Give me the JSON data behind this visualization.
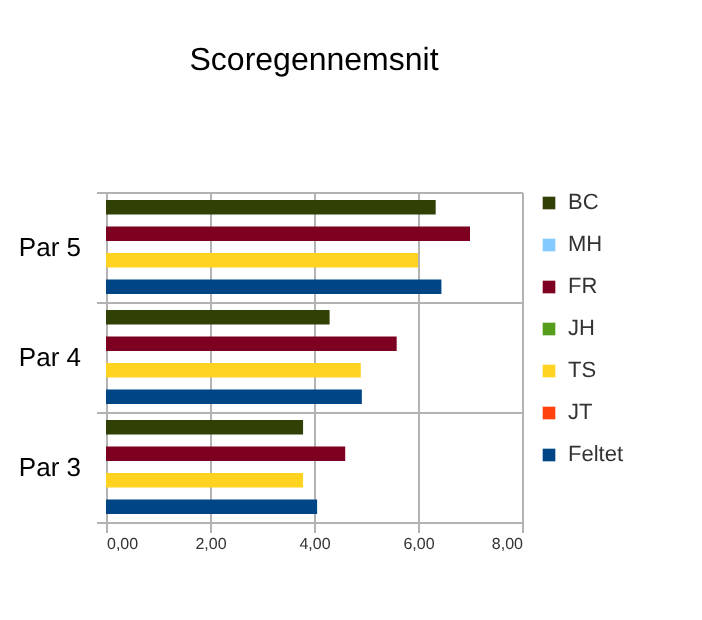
{
  "chart_data": {
    "type": "bar",
    "orientation": "horizontal",
    "title": "Scoregennemsnit",
    "categories": [
      "Par 5",
      "Par 4",
      "Par 3"
    ],
    "series": [
      {
        "name": "BC",
        "color": "#314004",
        "values": [
          6.34,
          4.3,
          3.79
        ]
      },
      {
        "name": "MH",
        "color": "#83caff",
        "values": [
          null,
          null,
          null
        ]
      },
      {
        "name": "FR",
        "color": "#7e0021",
        "values": [
          7.0,
          5.59,
          4.6
        ]
      },
      {
        "name": "JH",
        "color": "#579d1c",
        "values": [
          null,
          null,
          null
        ]
      },
      {
        "name": "TS",
        "color": "#ffd320",
        "values": [
          6.0,
          4.9,
          3.79
        ]
      },
      {
        "name": "JT",
        "color": "#ff420e",
        "values": [
          null,
          null,
          null
        ]
      },
      {
        "name": "Feltet",
        "color": "#004586",
        "values": [
          6.45,
          4.92,
          4.06
        ]
      }
    ],
    "xlim": [
      0,
      8
    ],
    "xticks": [
      {
        "value": 0,
        "label": "0,00"
      },
      {
        "value": 2,
        "label": "2,00"
      },
      {
        "value": 4,
        "label": "4,00"
      },
      {
        "value": 6,
        "label": "6,00"
      },
      {
        "value": 8,
        "label": "8,00"
      }
    ],
    "grid": true,
    "legend": "right"
  }
}
